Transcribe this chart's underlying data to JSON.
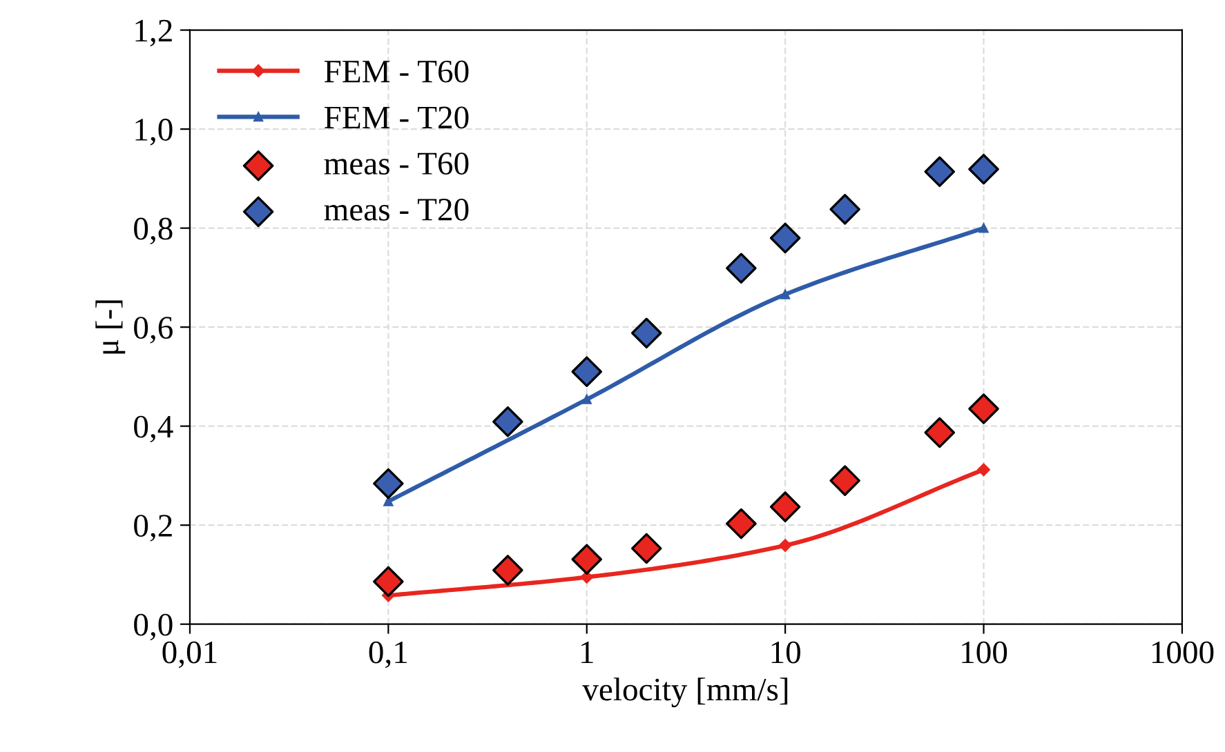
{
  "chart_data": {
    "type": "line",
    "xlabel": "velocity [mm/s]",
    "ylabel": "μ [-]",
    "log": "x",
    "grid": true,
    "legend": "top left",
    "xlim": [
      0.01,
      1000
    ],
    "xticks": [
      {
        "value": 0.01,
        "label": "0,01"
      },
      {
        "value": 0.1,
        "label": "0,1"
      },
      1,
      10,
      100,
      1000
    ],
    "ylim": [
      0,
      1.2
    ],
    "yticks": [
      {
        "value": 0,
        "label": "0,0"
      },
      {
        "value": 0.2,
        "label": "0,2"
      },
      {
        "value": 0.4,
        "label": "0,4"
      },
      {
        "value": 0.6,
        "label": "0,6"
      },
      {
        "value": 0.8,
        "label": "0,8"
      },
      {
        "value": 1.0,
        "label": "1,0"
      },
      {
        "value": 1.2,
        "label": "1,2"
      }
    ],
    "series": [
      {
        "name": "FEM - T60",
        "marker": "diamond",
        "color": "#e8261f",
        "x": [
          0.1,
          1,
          10,
          100
        ],
        "values": [
          0.058,
          0.095,
          0.159,
          0.312
        ]
      },
      {
        "name": "FEM - T20",
        "marker": "triangle",
        "color": "#2f5ca8",
        "x": [
          0.1,
          1,
          10,
          100
        ],
        "values": [
          0.248,
          0.454,
          0.666,
          0.8
        ]
      },
      {
        "name": "meas - T60",
        "type": "scatter",
        "marker": "diamond",
        "color": "#e8261f",
        "x": [
          0.1,
          0.4,
          1,
          2,
          6,
          10,
          20,
          60,
          100
        ],
        "values": [
          0.086,
          0.109,
          0.131,
          0.153,
          0.203,
          0.237,
          0.29,
          0.387,
          0.435
        ]
      },
      {
        "name": "meas - T20",
        "type": "scatter",
        "marker": "diamond",
        "color": "#3a5fb0",
        "x": [
          0.1,
          0.4,
          1,
          2,
          6,
          10,
          20,
          60,
          100
        ],
        "values": [
          0.284,
          0.409,
          0.51,
          0.588,
          0.719,
          0.78,
          0.838,
          0.914,
          0.919
        ]
      }
    ]
  }
}
